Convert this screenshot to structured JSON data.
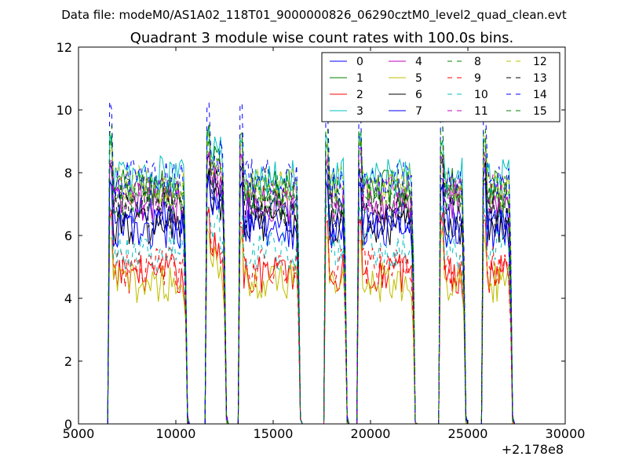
{
  "chart_data": {
    "type": "line",
    "suptitle": "Data file: modeM0/AS1A02_118T01_9000000826_06290cztM0_level2_quad_clean.evt",
    "title": "Quadrant 3 module wise count rates with 100.0s bins.",
    "xlabel": "",
    "ylabel": "",
    "xlim": [
      5000,
      30000
    ],
    "ylim": [
      0,
      12
    ],
    "x_offset_label": "+2.178e8",
    "xticks": [
      5000,
      10000,
      15000,
      20000,
      25000,
      30000
    ],
    "xtick_labels": [
      "5000",
      "10000",
      "15000",
      "20000",
      "25000",
      "30000"
    ],
    "yticks": [
      0,
      2,
      4,
      6,
      8,
      10,
      12
    ],
    "ytick_labels": [
      "0",
      "2",
      "4",
      "6",
      "8",
      "10",
      "12"
    ],
    "grid": false,
    "legend_position": "top-right",
    "legend_columns": 4,
    "segments": [
      {
        "start": 6600,
        "end": 10600
      },
      {
        "start": 11600,
        "end": 12600
      },
      {
        "start": 13300,
        "end": 16400
      },
      {
        "start": 17700,
        "end": 18800
      },
      {
        "start": 19400,
        "end": 22300
      },
      {
        "start": 23600,
        "end": 24900
      },
      {
        "start": 25800,
        "end": 27300
      }
    ],
    "series": [
      {
        "name": "0",
        "color": "#0000ff",
        "style": "solid",
        "level": 6.6,
        "peak": 8.0
      },
      {
        "name": "1",
        "color": "#008000",
        "style": "solid",
        "level": 7.5,
        "peak": 9.0
      },
      {
        "name": "2",
        "color": "#ff0000",
        "style": "solid",
        "level": 4.8,
        "peak": 6.5
      },
      {
        "name": "3",
        "color": "#00bfbf",
        "style": "solid",
        "level": 7.9,
        "peak": 9.1
      },
      {
        "name": "4",
        "color": "#bf00bf",
        "style": "solid",
        "level": 7.0,
        "peak": 8.5
      },
      {
        "name": "5",
        "color": "#bfbf00",
        "style": "solid",
        "level": 4.5,
        "peak": 6.0
      },
      {
        "name": "6",
        "color": "#000000",
        "style": "solid",
        "level": 6.3,
        "peak": 7.6
      },
      {
        "name": "7",
        "color": "#0000ff",
        "style": "solid",
        "level": 6.2,
        "peak": 7.5
      },
      {
        "name": "8",
        "color": "#008000",
        "style": "dashed",
        "level": 7.3,
        "peak": 8.8
      },
      {
        "name": "9",
        "color": "#ff0000",
        "style": "dashed",
        "level": 5.0,
        "peak": 6.6
      },
      {
        "name": "10",
        "color": "#00bfbf",
        "style": "dashed",
        "level": 5.5,
        "peak": 6.8
      },
      {
        "name": "11",
        "color": "#bf00bf",
        "style": "dashed",
        "level": 7.3,
        "peak": 8.6
      },
      {
        "name": "12",
        "color": "#bfbf00",
        "style": "dashed",
        "level": 7.6,
        "peak": 8.9
      },
      {
        "name": "13",
        "color": "#000000",
        "style": "dashed",
        "level": 6.8,
        "peak": 8.2
      },
      {
        "name": "14",
        "color": "#0000ff",
        "style": "dashed",
        "level": 7.8,
        "peak": 10.0
      },
      {
        "name": "15",
        "color": "#008000",
        "style": "dashed",
        "level": 7.2,
        "peak": 9.4
      }
    ]
  }
}
